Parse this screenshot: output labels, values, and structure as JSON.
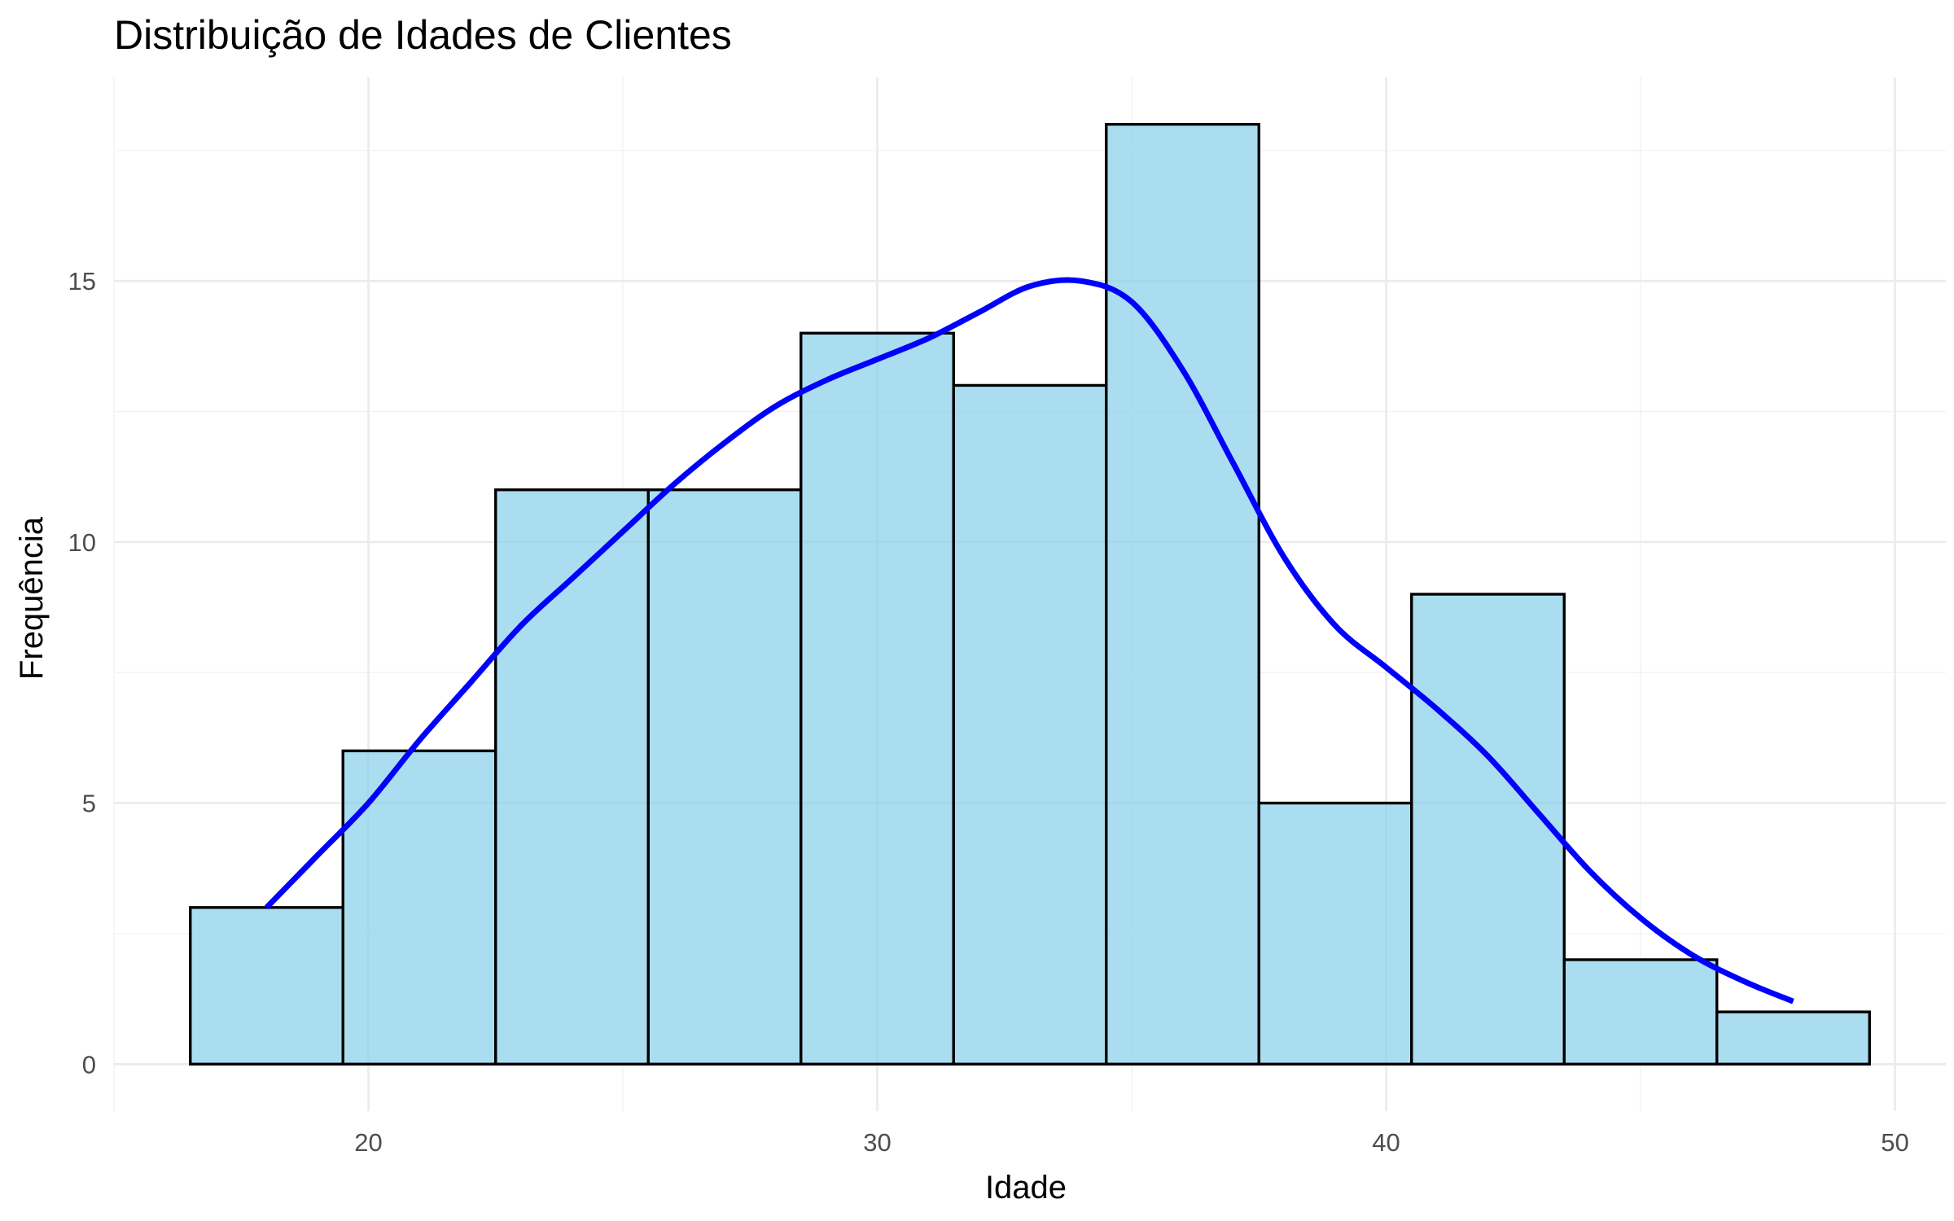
{
  "chart_data": {
    "type": "bar",
    "subtype": "histogram",
    "title": "Distribuição de Idades de Clientes",
    "xlabel": "Idade",
    "ylabel": "Frequência",
    "bin_width": 3,
    "bins": [
      {
        "x0": 16.5,
        "x1": 19.5,
        "count": 3
      },
      {
        "x0": 19.5,
        "x1": 22.5,
        "count": 6
      },
      {
        "x0": 22.5,
        "x1": 25.5,
        "count": 11
      },
      {
        "x0": 25.5,
        "x1": 28.5,
        "count": 11
      },
      {
        "x0": 28.5,
        "x1": 31.5,
        "count": 14
      },
      {
        "x0": 31.5,
        "x1": 34.5,
        "count": 13
      },
      {
        "x0": 34.5,
        "x1": 37.5,
        "count": 18
      },
      {
        "x0": 37.5,
        "x1": 40.5,
        "count": 5
      },
      {
        "x0": 40.5,
        "x1": 43.5,
        "count": 9
      },
      {
        "x0": 43.5,
        "x1": 46.5,
        "count": 2
      },
      {
        "x0": 46.5,
        "x1": 49.5,
        "count": 1
      }
    ],
    "density_curve": {
      "x": [
        18,
        19,
        20,
        21,
        22,
        23,
        24,
        25,
        26,
        27,
        28,
        29,
        30,
        31,
        32,
        33,
        34,
        35,
        36,
        37,
        38,
        39,
        40,
        41,
        42,
        43,
        44,
        45,
        46,
        47,
        48
      ],
      "y": [
        3.0,
        4.0,
        5.0,
        6.2,
        7.3,
        8.4,
        9.3,
        10.2,
        11.1,
        11.9,
        12.6,
        13.1,
        13.5,
        13.9,
        14.4,
        14.9,
        15.0,
        14.6,
        13.3,
        11.5,
        9.7,
        8.4,
        7.6,
        6.8,
        5.9,
        4.8,
        3.7,
        2.8,
        2.1,
        1.6,
        1.2
      ]
    },
    "xlim": [
      15,
      51
    ],
    "ylim": [
      -0.9,
      18.9
    ],
    "x_ticks": [
      20,
      30,
      40,
      50
    ],
    "y_ticks": [
      0,
      5,
      10,
      15
    ],
    "grid": true,
    "colors": {
      "bar_fill": "#87ceeb",
      "bar_stroke": "#000000",
      "density": "#0000ff"
    }
  }
}
